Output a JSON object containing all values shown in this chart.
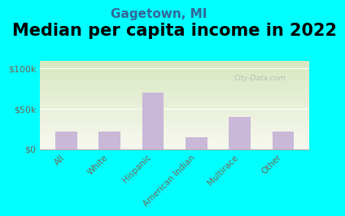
{
  "title": "Median per capita income in 2022",
  "subtitle": "Gagetown, MI",
  "categories": [
    "All",
    "White",
    "Hispanic",
    "American Indian",
    "Multirace",
    "Other"
  ],
  "values": [
    22000,
    22000,
    70000,
    15000,
    40000,
    22000
  ],
  "bar_color": "#c9b8d8",
  "background_outer": "#00FFFF",
  "background_inner_top": "#d8e8c0",
  "background_inner_bottom": "#f8f8f0",
  "yticks": [
    0,
    50000,
    100000
  ],
  "ytick_labels": [
    "$0",
    "$50k",
    "$100k"
  ],
  "ylim": [
    0,
    110000
  ],
  "title_fontsize": 15,
  "subtitle_fontsize": 11,
  "tick_label_color": "#776655",
  "watermark": "City-Data.com"
}
